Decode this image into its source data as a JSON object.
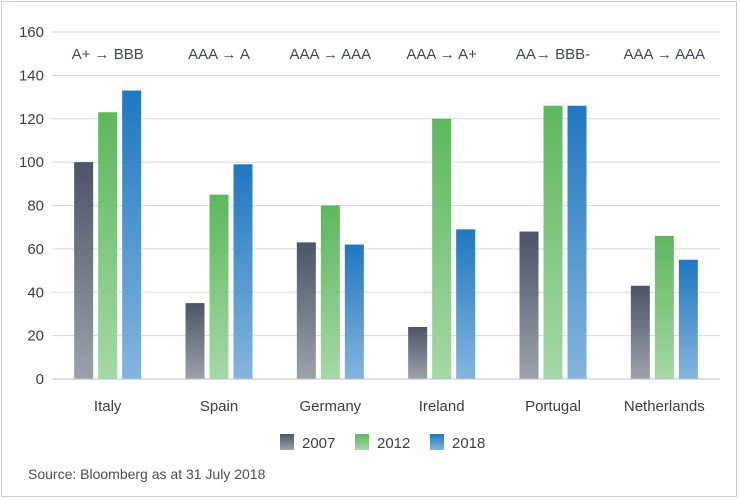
{
  "chart_data": {
    "type": "bar",
    "categories": [
      "Italy",
      "Spain",
      "Germany",
      "Ireland",
      "Portugal",
      "Netherlands"
    ],
    "series": [
      {
        "name": "2007",
        "values": [
          100,
          35,
          63,
          24,
          68,
          43
        ],
        "color": "#4b5566"
      },
      {
        "name": "2012",
        "values": [
          123,
          85,
          80,
          120,
          126,
          66
        ],
        "color": "#5cb85c"
      },
      {
        "name": "2018",
        "values": [
          133,
          99,
          62,
          69,
          126,
          55
        ],
        "color": "#1f78c1"
      }
    ],
    "annotations": [
      "A+ → BBB",
      "AAA → A",
      "AAA → AAA",
      "AAA → A+",
      "AA→ BBB-",
      "AAA → AAA"
    ],
    "ylim": [
      0,
      160
    ],
    "yticks": [
      0,
      20,
      40,
      60,
      80,
      100,
      120,
      140,
      160
    ],
    "grid": true,
    "legend_position": "bottom"
  },
  "source_text": "Source: Bloomberg as at 31 July 2018"
}
